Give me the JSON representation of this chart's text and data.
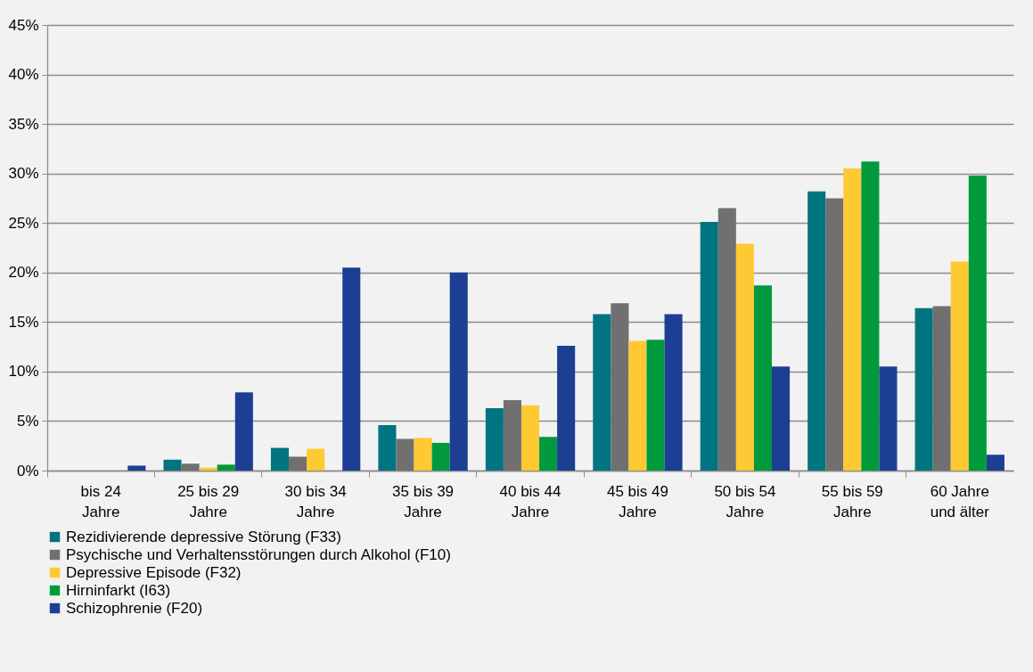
{
  "chart_data": {
    "type": "bar",
    "categories": [
      "bis 24\nJahre",
      "25 bis 29\nJahre",
      "30 bis 34\nJahre",
      "35 bis 39\nJahre",
      "40 bis 44\nJahre",
      "45 bis 49\nJahre",
      "50 bis 54\nJahre",
      "55 bis 59\nJahre",
      "60 Jahre\nund älter"
    ],
    "series": [
      {
        "name": "Rezidivierende depressive Störung (F33)",
        "color": "#007480",
        "values": [
          0,
          1.1,
          2.3,
          4.6,
          6.3,
          15.8,
          25.1,
          28.2,
          16.4
        ]
      },
      {
        "name": "Psychische und Verhaltensstörungen durch Alkohol (F10)",
        "color": "#707070",
        "values": [
          0,
          0.7,
          1.4,
          3.2,
          7.1,
          16.9,
          26.5,
          27.5,
          16.6
        ]
      },
      {
        "name": "Depressive Episode (F32)",
        "color": "#ffc933",
        "values": [
          0,
          0.3,
          2.2,
          3.3,
          6.6,
          13.1,
          22.9,
          30.5,
          21.1
        ]
      },
      {
        "name": "Hirninfarkt (I63)",
        "color": "#009a3d",
        "values": [
          0,
          0.6,
          0,
          2.8,
          3.4,
          13.2,
          18.7,
          31.2,
          29.8
        ]
      },
      {
        "name": "Schizophrenie (F20)",
        "color": "#1c3f94",
        "values": [
          0.5,
          7.9,
          20.5,
          20.0,
          12.6,
          15.8,
          10.5,
          10.5,
          1.6
        ]
      }
    ],
    "ylim": [
      0,
      45
    ],
    "yticks": [
      {
        "value": 0,
        "label": "0%"
      },
      {
        "value": 5,
        "label": "5%"
      },
      {
        "value": 10,
        "label": "10%"
      },
      {
        "value": 15,
        "label": "15%"
      },
      {
        "value": 20,
        "label": "20%"
      },
      {
        "value": 25,
        "label": "25%"
      },
      {
        "value": 30,
        "label": "30%"
      },
      {
        "value": 35,
        "label": "35%"
      },
      {
        "value": 40,
        "label": "40%"
      },
      {
        "value": 45,
        "label": "45%"
      }
    ],
    "grid": "y",
    "legend": "bottom"
  }
}
